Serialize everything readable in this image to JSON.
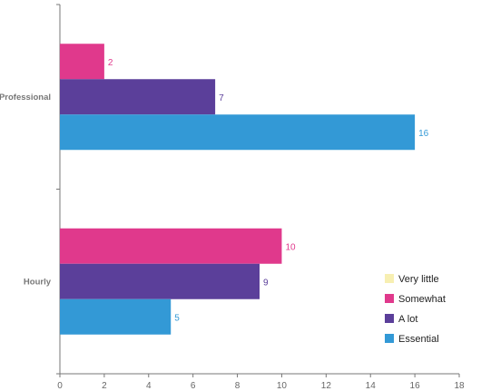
{
  "chart_data": {
    "type": "bar",
    "orientation": "horizontal",
    "categories": [
      "Professional",
      "Hourly"
    ],
    "series": [
      {
        "name": "Very little",
        "color": "#f7efb2",
        "values": [
          0,
          0
        ]
      },
      {
        "name": "Somewhat",
        "color": "#e0398c",
        "values": [
          2,
          10
        ]
      },
      {
        "name": "A lot",
        "color": "#5b3f9a",
        "values": [
          7,
          9
        ]
      },
      {
        "name": "Essential",
        "color": "#3399d6",
        "values": [
          16,
          5
        ]
      }
    ],
    "x_ticks": [
      0,
      2,
      4,
      6,
      8,
      10,
      12,
      14,
      16,
      18
    ],
    "xlim": [
      0,
      18
    ],
    "title": "",
    "xlabel": "",
    "ylabel": "",
    "grid": false,
    "legend": {
      "placement": "bottom-right",
      "items": [
        "Very little",
        "Somewhat",
        "A lot",
        "Essential"
      ]
    }
  }
}
